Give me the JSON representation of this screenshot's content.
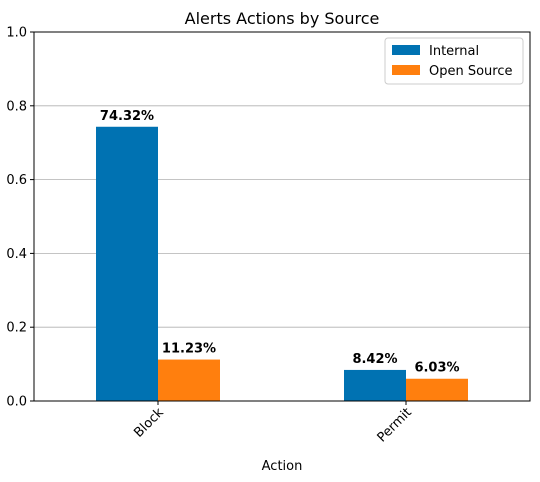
{
  "chart_data": {
    "type": "bar",
    "title": "Alerts Actions by Source",
    "xlabel": "Action",
    "ylabel": "",
    "categories": [
      "Block",
      "Permit"
    ],
    "series": [
      {
        "name": "Internal",
        "color": "#0072B2",
        "values": [
          0.7432,
          0.0842
        ],
        "labels": [
          "74.32%",
          "8.42%"
        ]
      },
      {
        "name": "Open Source",
        "color": "#FF7F0E",
        "values": [
          0.1123,
          0.0603
        ],
        "labels": [
          "11.23%",
          "6.03%"
        ]
      }
    ],
    "ylim": [
      0,
      1.0
    ],
    "yticks": [
      "0.0",
      "0.2",
      "0.4",
      "0.6",
      "0.8",
      "1.0"
    ],
    "grid": "horizontal",
    "legend": "top-right"
  }
}
